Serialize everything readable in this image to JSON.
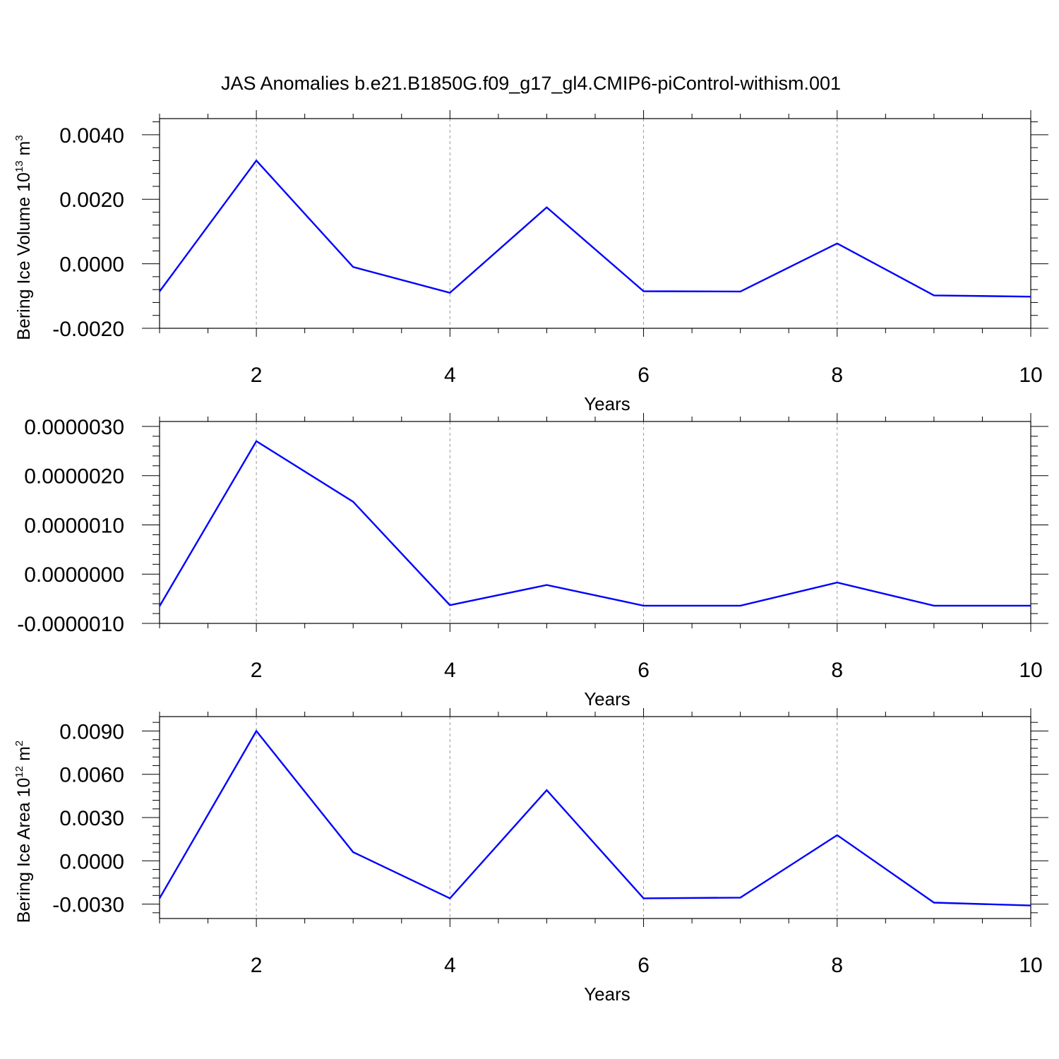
{
  "figure_title": "JAS Anomalies b.e21.B1850G.f09_g17_gl4.CMIP6-piControl-withism.001",
  "colors": {
    "series": "#0000ff",
    "axis": "#000000",
    "grid": "#999999"
  },
  "chart_data": [
    {
      "type": "line",
      "title": "",
      "xlabel": "Years",
      "ylabel": {
        "text": "Bering Ice Volume 10",
        "sup1": "13",
        "mid": " m",
        "sup2": "3"
      },
      "xlim": [
        1,
        10
      ],
      "ylim": [
        -0.002,
        0.0045
      ],
      "xticks": [
        2,
        4,
        6,
        8,
        10
      ],
      "yticks": [
        -0.002,
        0,
        0.002,
        0.004
      ],
      "ytick_labels": [
        "-0.0020",
        "0.0000",
        "0.0020",
        "0.0040"
      ],
      "grid": "vertical dashed at major x ticks",
      "series": [
        {
          "x": [
            1,
            2,
            3,
            4,
            5,
            6,
            7,
            8,
            9,
            10
          ],
          "values": [
            -0.00086,
            0.0032,
            -0.0001,
            -0.0009,
            0.00175,
            -0.00085,
            -0.00086,
            0.00063,
            -0.00098,
            -0.00102
          ]
        }
      ]
    },
    {
      "type": "line",
      "title": "",
      "xlabel": "Years",
      "ylabel": null,
      "xlim": [
        1,
        10
      ],
      "ylim": [
        -1e-06,
        3.1e-06
      ],
      "xticks": [
        2,
        4,
        6,
        8,
        10
      ],
      "yticks": [
        -1e-06,
        0,
        1e-06,
        2e-06,
        3e-06
      ],
      "ytick_labels": [
        "-0.0000010",
        "0.0000000",
        "0.0000010",
        "0.0000020",
        "0.0000030"
      ],
      "grid": "vertical dashed at major x ticks",
      "series": [
        {
          "x": [
            1,
            2,
            3,
            4,
            5,
            6,
            7,
            8,
            9,
            10
          ],
          "values": [
            -6.5e-07,
            2.7e-06,
            1.47e-06,
            -6.3e-07,
            -2.2e-07,
            -6.4e-07,
            -6.4e-07,
            -1.7e-07,
            -6.4e-07,
            -6.4e-07
          ]
        }
      ]
    },
    {
      "type": "line",
      "title": "",
      "xlabel": "Years",
      "ylabel": {
        "text": "Bering Ice Area 10",
        "sup1": "12",
        "mid": " m",
        "sup2": "2"
      },
      "xlim": [
        1,
        10
      ],
      "ylim": [
        -0.004,
        0.01
      ],
      "xticks": [
        2,
        4,
        6,
        8,
        10
      ],
      "yticks": [
        -0.003,
        0,
        0.003,
        0.006,
        0.009
      ],
      "ytick_labels": [
        "-0.0030",
        "0.0000",
        "0.0030",
        "0.0060",
        "0.0090"
      ],
      "grid": "vertical dashed at major x ticks",
      "series": [
        {
          "x": [
            1,
            2,
            3,
            4,
            5,
            6,
            7,
            8,
            9,
            10
          ],
          "values": [
            -0.0026,
            0.009,
            0.0006,
            -0.0026,
            0.0049,
            -0.0026,
            -0.00255,
            0.00178,
            -0.0029,
            -0.0031
          ]
        }
      ]
    }
  ]
}
